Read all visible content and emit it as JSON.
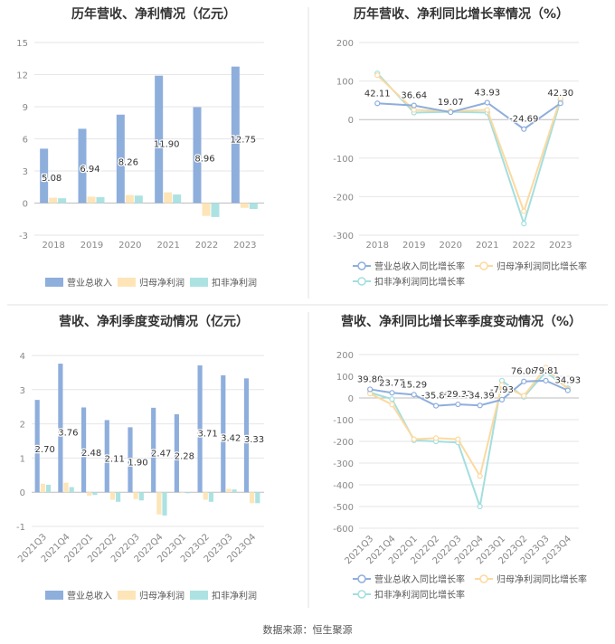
{
  "source": "数据来源：恒生聚源",
  "colors": {
    "revenue": "#8eaedc",
    "net_profit": "#fde5b8",
    "deducted_profit": "#ade2e2",
    "revenue_line": "#8eaedc",
    "net_line": "#fcd9a0",
    "deducted_line": "#a4dede",
    "axis_text": "#888888",
    "grid": "#e6e6e6",
    "divider": "#dddddd"
  },
  "chart_data": [
    {
      "id": "annual_bar",
      "type": "bar",
      "title": "历年营收、净利情况（亿元）",
      "categories": [
        "2018",
        "2019",
        "2020",
        "2021",
        "2022",
        "2023"
      ],
      "ylim": [
        -3,
        15
      ],
      "yticks": [
        -3,
        0,
        3,
        6,
        9,
        12,
        15
      ],
      "series": [
        {
          "name": "营业总收入",
          "values": [
            5.08,
            6.94,
            8.26,
            11.9,
            8.96,
            12.75
          ],
          "labels": [
            "5.08",
            "6.94",
            "8.26",
            "11.90",
            "8.96",
            "12.75"
          ]
        },
        {
          "name": "归母净利润",
          "values": [
            0.5,
            0.6,
            0.75,
            1.0,
            -1.2,
            -0.45
          ]
        },
        {
          "name": "扣非净利润",
          "values": [
            0.45,
            0.55,
            0.7,
            0.8,
            -1.3,
            -0.55
          ]
        }
      ],
      "legend": "bottom",
      "grid": true
    },
    {
      "id": "annual_growth",
      "type": "line",
      "title": "历年营收、净利同比增长率情况（%）",
      "categories": [
        "2018",
        "2019",
        "2020",
        "2021",
        "2022",
        "2023"
      ],
      "ylim": [
        -300,
        200
      ],
      "yticks": [
        -300,
        -200,
        -100,
        0,
        100,
        200
      ],
      "series": [
        {
          "name": "营业总收入同比增长率",
          "values": [
            42.11,
            36.64,
            19.07,
            43.93,
            -24.69,
            42.3
          ],
          "labels": [
            "42.11",
            "36.64",
            "19.07",
            "43.93",
            "-24.69",
            "42.30"
          ]
        },
        {
          "name": "归母净利润同比增长率",
          "values": [
            115,
            25,
            22,
            25,
            -238,
            55
          ]
        },
        {
          "name": "扣非净利润同比增长率",
          "values": [
            120,
            18,
            20,
            18,
            -270,
            50
          ]
        }
      ],
      "legend": "bottom",
      "grid": true
    },
    {
      "id": "quarterly_bar",
      "type": "bar",
      "title": "营收、净利季度变动情况（亿元）",
      "categories": [
        "2021Q3",
        "2021Q4",
        "2022Q1",
        "2022Q2",
        "2022Q3",
        "2022Q4",
        "2023Q1",
        "2023Q2",
        "2023Q3",
        "2023Q4"
      ],
      "ylim": [
        -1,
        4
      ],
      "yticks": [
        -1,
        0,
        1,
        2,
        3,
        4
      ],
      "series": [
        {
          "name": "营业总收入",
          "values": [
            2.7,
            3.76,
            2.48,
            2.11,
            1.9,
            2.47,
            2.28,
            3.71,
            3.42,
            3.33
          ],
          "labels": [
            "2.70",
            "3.76",
            "2.48",
            "2.11",
            "1.90",
            "2.47",
            "2.28",
            "3.71",
            "3.42",
            "3.33"
          ]
        },
        {
          "name": "归母净利润",
          "values": [
            0.25,
            0.28,
            -0.1,
            -0.22,
            -0.2,
            -0.65,
            -0.02,
            -0.22,
            0.1,
            -0.32
          ]
        },
        {
          "name": "扣非净利润",
          "values": [
            0.22,
            0.15,
            -0.08,
            -0.28,
            -0.24,
            -0.68,
            -0.03,
            -0.28,
            0.08,
            -0.32
          ]
        }
      ],
      "legend": "bottom",
      "grid": true
    },
    {
      "id": "quarterly_growth",
      "type": "line",
      "title": "营收、净利同比增长率季度变动情况（%）",
      "categories": [
        "2021Q3",
        "2021Q4",
        "2022Q1",
        "2022Q2",
        "2022Q3",
        "2022Q4",
        "2023Q1",
        "2023Q2",
        "2023Q3",
        "2023Q4"
      ],
      "ylim": [
        -600,
        200
      ],
      "yticks": [
        -600,
        -500,
        -400,
        -300,
        -200,
        -100,
        0,
        100,
        200
      ],
      "series": [
        {
          "name": "营业总收入同比增长率",
          "values": [
            39.8,
            23.77,
            15.29,
            -35.87,
            -29.37,
            -34.39,
            -7.93,
            76.08,
            79.81,
            34.93
          ],
          "labels": [
            "39.80",
            "23.77",
            "15.29",
            "-35.87",
            "-29.37",
            "-34.39",
            "-7.93",
            "76.08",
            "79.81",
            "34.93"
          ]
        },
        {
          "name": "归母净利润同比增长率",
          "values": [
            20,
            -30,
            -190,
            -185,
            -190,
            -360,
            60,
            10,
            140,
            40
          ]
        },
        {
          "name": "扣非净利润同比增长率",
          "values": [
            25,
            -5,
            -195,
            -200,
            -205,
            -500,
            80,
            5,
            120,
            45
          ]
        }
      ],
      "legend": "bottom",
      "grid": true
    }
  ]
}
